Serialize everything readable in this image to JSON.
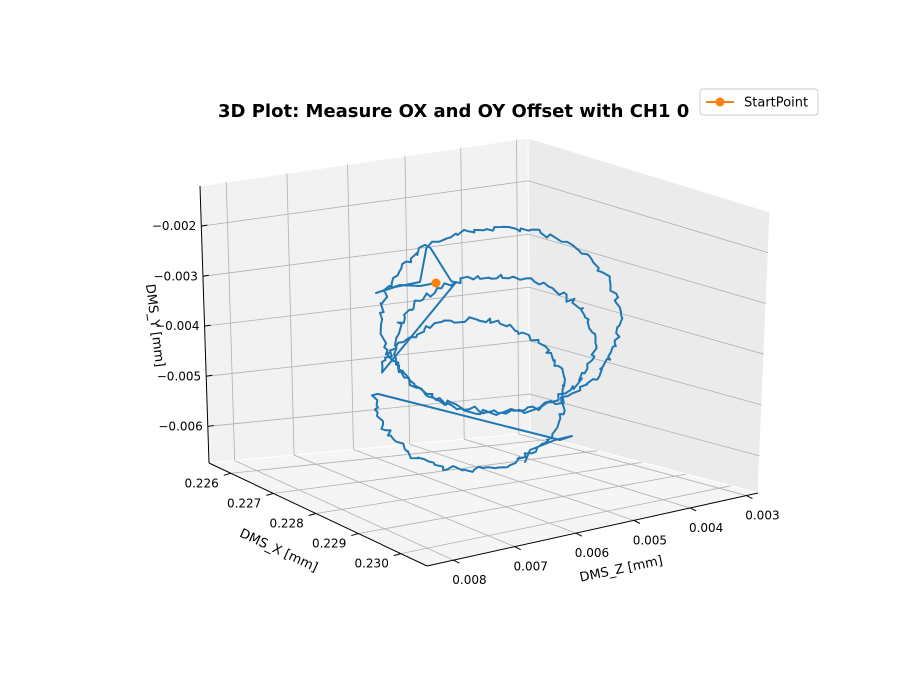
{
  "chart_data": {
    "type": "line",
    "projection": "3d",
    "title": "3D Plot: Measure OX and OY Offset with CH1 0",
    "xlabel": "DMS_X [mm]",
    "ylabel": "DMS_Y [mm]",
    "zlabel": "DMS_Z [mm]",
    "xlim": [
      0.2255,
      0.2305
    ],
    "ylim": [
      -0.0068,
      -0.0013
    ],
    "zlim": [
      0.0085,
      0.0025
    ],
    "x_ticks": [
      "0.226",
      "0.227",
      "0.228",
      "0.229",
      "0.230"
    ],
    "y_ticks": [
      "−0.002",
      "−0.003",
      "−0.004",
      "−0.005",
      "−0.006"
    ],
    "z_ticks": [
      "0.008",
      "0.007",
      "0.006",
      "0.005",
      "0.004",
      "0.003"
    ],
    "grid": true,
    "legend_position": "top-right",
    "series": [
      {
        "name": "",
        "color": "#1f77b4",
        "style": "line",
        "description": "noisy helical loop path"
      },
      {
        "name": "StartPoint",
        "color": "#ff7f0e",
        "style": "marker",
        "values": [
          [
            0.2284,
            -0.003,
            0.0046
          ]
        ]
      }
    ]
  }
}
